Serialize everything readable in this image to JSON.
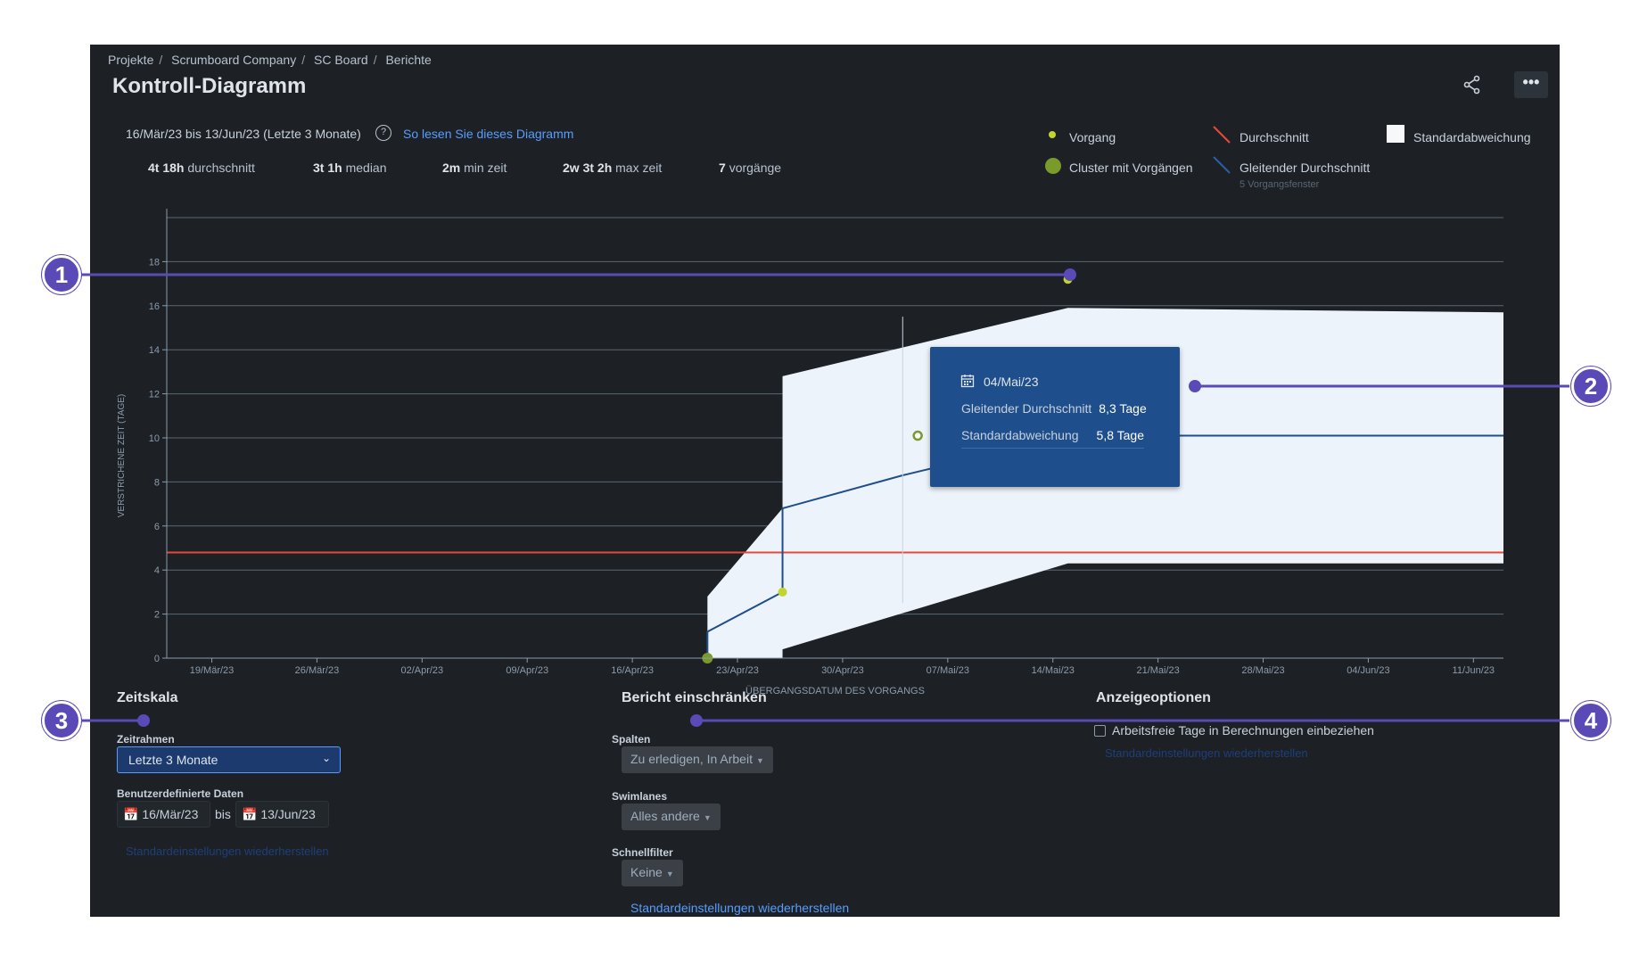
{
  "breadcrumb": [
    "Projekte",
    "Scrumboard Company",
    "SC Board",
    "Berichte"
  ],
  "title": "Kontroll-Diagramm",
  "date_range": "16/Mär/23 bis 13/Jun/23 (Letzte 3 Monate)",
  "help_icon": "question-circle-icon",
  "how_to_read": "So lesen Sie dieses Diagramm",
  "stats": [
    {
      "value": "4t 18h",
      "label": "durchschnitt"
    },
    {
      "value": "3t 1h",
      "label": "median"
    },
    {
      "value": "2m",
      "label": "min zeit"
    },
    {
      "value": "2w 3t 2h",
      "label": "max zeit"
    },
    {
      "value": "7",
      "label": "vorgänge"
    }
  ],
  "legend": {
    "vorgang": "Vorgang",
    "cluster": "Cluster mit Vorgängen",
    "durchschnitt": "Durchschnitt",
    "gleitender": "Gleitender Durchschnitt",
    "gleitender_sub": "5 Vorgangsfenster",
    "stdabw": "Standardabweichung"
  },
  "colors": {
    "accent": "#579dff",
    "average": "#e5493a",
    "rolling": "#1f4e8c",
    "issue": "#c3d42c",
    "cluster": "#7a9a2a",
    "band": "#edf3fa"
  },
  "chart_data": {
    "type": "scatter",
    "xlabel": "ÜBERGANGSDATUM DES VORGANGS",
    "ylabel": "VERSTRICHENE ZEIT (TAGE)",
    "x_tick_labels": [
      "19/Mär/23",
      "26/Mär/23",
      "02/Apr/23",
      "09/Apr/23",
      "16/Apr/23",
      "23/Apr/23",
      "30/Apr/23",
      "07/Mai/23",
      "14/Mai/23",
      "21/Mai/23",
      "28/Mai/23",
      "04/Jun/23",
      "11/Jun/23"
    ],
    "xlim": [
      "16/Mär/23",
      "13/Jun/23"
    ],
    "y_ticks": [
      0,
      2,
      4,
      6,
      8,
      10,
      12,
      14,
      16,
      18
    ],
    "ylim": [
      0,
      20
    ],
    "grid": true,
    "average": 4.8,
    "issues": [
      {
        "date": "21/Apr/23",
        "value": 0,
        "cluster": true
      },
      {
        "date": "26/Apr/23",
        "value": 3.0
      },
      {
        "date": "05/Mai/23",
        "value": 10.1
      },
      {
        "date": "15/Mai/23",
        "value": 17.2
      }
    ],
    "rolling_average": [
      {
        "date": "21/Apr/23",
        "value": 0
      },
      {
        "date": "21/Apr/23",
        "value": 1.2
      },
      {
        "date": "26/Apr/23",
        "value": 3.0
      },
      {
        "date": "26/Apr/23",
        "value": 6.8
      },
      {
        "date": "04/Mai/23",
        "value": 8.3
      },
      {
        "date": "15/Mai/23",
        "value": 10.1
      },
      {
        "date": "13/Jun/23",
        "value": 10.1
      }
    ],
    "std_band": [
      {
        "date": "21/Apr/23",
        "upper": 2.8,
        "lower": 0
      },
      {
        "date": "26/Apr/23",
        "upper": 6.8,
        "lower": 0
      },
      {
        "date": "26/Apr/23",
        "upper": 12.8,
        "lower": 0.4
      },
      {
        "date": "15/Mai/23",
        "upper": 15.9,
        "lower": 4.3
      },
      {
        "date": "13/Jun/23",
        "upper": 15.7,
        "lower": 4.3
      }
    ]
  },
  "tooltip": {
    "calendar_icon": "calendar-icon",
    "date": "04/Mai/23",
    "rows": [
      {
        "label": "Gleitender Durchschnitt",
        "value": "8,3 Tage"
      },
      {
        "label": "Standardabweichung",
        "value": "5,8 Tage"
      }
    ]
  },
  "zeitskala": {
    "title": "Zeitskala",
    "zeitrahmen_label": "Zeitrahmen",
    "zeitrahmen_value": "Letzte 3 Monate",
    "custom_label": "Benutzerdefinierte Daten",
    "from": "16/Mär/23",
    "bis": "bis",
    "to": "13/Jun/23",
    "restore": "Standardeinstellungen wiederherstellen"
  },
  "bericht": {
    "title": "Bericht einschränken",
    "spalten_label": "Spalten",
    "spalten_value": "Zu erledigen, In Arbeit",
    "swimlanes_label": "Swimlanes",
    "swimlanes_value": "Alles andere",
    "schnellfilter_label": "Schnellfilter",
    "schnellfilter_value": "Keine",
    "restore": "Standardeinstellungen wiederherstellen"
  },
  "anzeige": {
    "title": "Anzeigeoptionen",
    "checkbox_label": "Arbeitsfreie Tage in Berechnungen einbeziehen",
    "checked": false,
    "restore": "Standardeinstellungen wiederherstellen"
  },
  "callouts": [
    "1",
    "2",
    "3",
    "4"
  ]
}
